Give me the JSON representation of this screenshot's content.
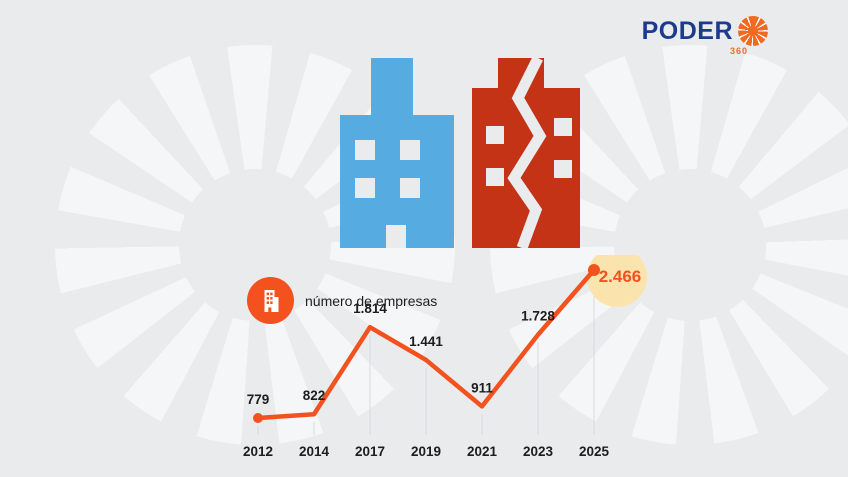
{
  "logo": {
    "name": "PODER",
    "degrees": "360"
  },
  "legend": {
    "label": "número de empresas"
  },
  "chart_data": {
    "type": "line",
    "title": "número de empresas",
    "categories": [
      "2012",
      "2014",
      "2017",
      "2019",
      "2021",
      "2023",
      "2025"
    ],
    "values": [
      779,
      822,
      1814,
      1441,
      911,
      1728,
      2466
    ],
    "value_labels": [
      "779",
      "822",
      "1.814",
      "1.441",
      "911",
      "1.728",
      "2.466"
    ],
    "highlight_index": 6,
    "highlight_label": "2.466",
    "ylim": [
      700,
      2600
    ],
    "grid": true,
    "legend_position": "top-left",
    "line_color": "#f3511e",
    "label_color": "#1d1d1b",
    "highlight_text_color": "#f3511e",
    "highlight_circle_color": "#fbe3ad",
    "gridline_color": "#d8dadd"
  },
  "colors": {
    "background": "#e9ebed",
    "blue_building": "#56ace0",
    "red_building": "#c53317",
    "accent_orange": "#f3511e",
    "logo_navy": "#1d3b8c",
    "logo_orange": "#f06b21"
  }
}
